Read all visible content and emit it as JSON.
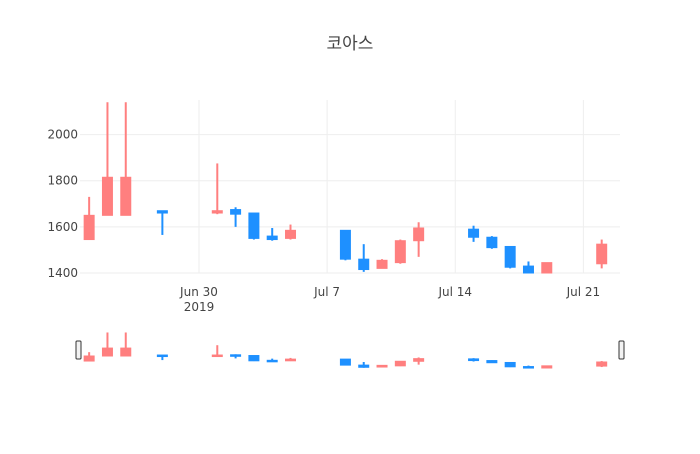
{
  "chart_data": {
    "type": "candlestick",
    "title": "코아스",
    "xlabel": "",
    "ylabel": "",
    "xlim": [
      "2019-06-24",
      "2019-07-22"
    ],
    "ylim": [
      1400,
      2150
    ],
    "y_ticks": [
      1400,
      1600,
      1800,
      2000
    ],
    "x_ticks": [
      {
        "date": "2019-06-30",
        "label": "Jun 30",
        "sublabel": "2019"
      },
      {
        "date": "2019-07-07",
        "label": "Jul 7",
        "sublabel": ""
      },
      {
        "date": "2019-07-14",
        "label": "Jul 14",
        "sublabel": ""
      },
      {
        "date": "2019-07-21",
        "label": "Jul 21",
        "sublabel": ""
      }
    ],
    "grid": true,
    "rangeslider": true,
    "increasing_color": "#ff7f7f",
    "decreasing_color": "#1e90ff",
    "candles": [
      {
        "date": "2019-06-24",
        "open": 1545,
        "high": 1730,
        "low": 1545,
        "close": 1650
      },
      {
        "date": "2019-06-25",
        "open": 1650,
        "high": 2140,
        "low": 1650,
        "close": 1815
      },
      {
        "date": "2019-06-26",
        "open": 1650,
        "high": 2140,
        "low": 1650,
        "close": 1815
      },
      {
        "date": "2019-06-28",
        "open": 1670,
        "high": 1670,
        "low": 1565,
        "close": 1660
      },
      {
        "date": "2019-07-01",
        "open": 1660,
        "high": 1875,
        "low": 1655,
        "close": 1670
      },
      {
        "date": "2019-07-02",
        "open": 1675,
        "high": 1685,
        "low": 1600,
        "close": 1655
      },
      {
        "date": "2019-07-03",
        "open": 1660,
        "high": 1660,
        "low": 1545,
        "close": 1550
      },
      {
        "date": "2019-07-04",
        "open": 1560,
        "high": 1595,
        "low": 1540,
        "close": 1545
      },
      {
        "date": "2019-07-05",
        "open": 1550,
        "high": 1610,
        "low": 1545,
        "close": 1585
      },
      {
        "date": "2019-07-08",
        "open": 1585,
        "high": 1585,
        "low": 1455,
        "close": 1460
      },
      {
        "date": "2019-07-09",
        "open": 1460,
        "high": 1525,
        "low": 1405,
        "close": 1415
      },
      {
        "date": "2019-07-10",
        "open": 1420,
        "high": 1460,
        "low": 1420,
        "close": 1455
      },
      {
        "date": "2019-07-11",
        "open": 1445,
        "high": 1545,
        "low": 1440,
        "close": 1540
      },
      {
        "date": "2019-07-12",
        "open": 1540,
        "high": 1620,
        "low": 1470,
        "close": 1595
      },
      {
        "date": "2019-07-15",
        "open": 1590,
        "high": 1605,
        "low": 1535,
        "close": 1555
      },
      {
        "date": "2019-07-16",
        "open": 1555,
        "high": 1560,
        "low": 1505,
        "close": 1510
      },
      {
        "date": "2019-07-17",
        "open": 1515,
        "high": 1515,
        "low": 1420,
        "close": 1425
      },
      {
        "date": "2019-07-18",
        "open": 1430,
        "high": 1450,
        "low": 1400,
        "close": 1400
      },
      {
        "date": "2019-07-19",
        "open": 1400,
        "high": 1445,
        "low": 1400,
        "close": 1445
      },
      {
        "date": "2019-07-22",
        "open": 1440,
        "high": 1545,
        "low": 1420,
        "close": 1525
      }
    ]
  }
}
